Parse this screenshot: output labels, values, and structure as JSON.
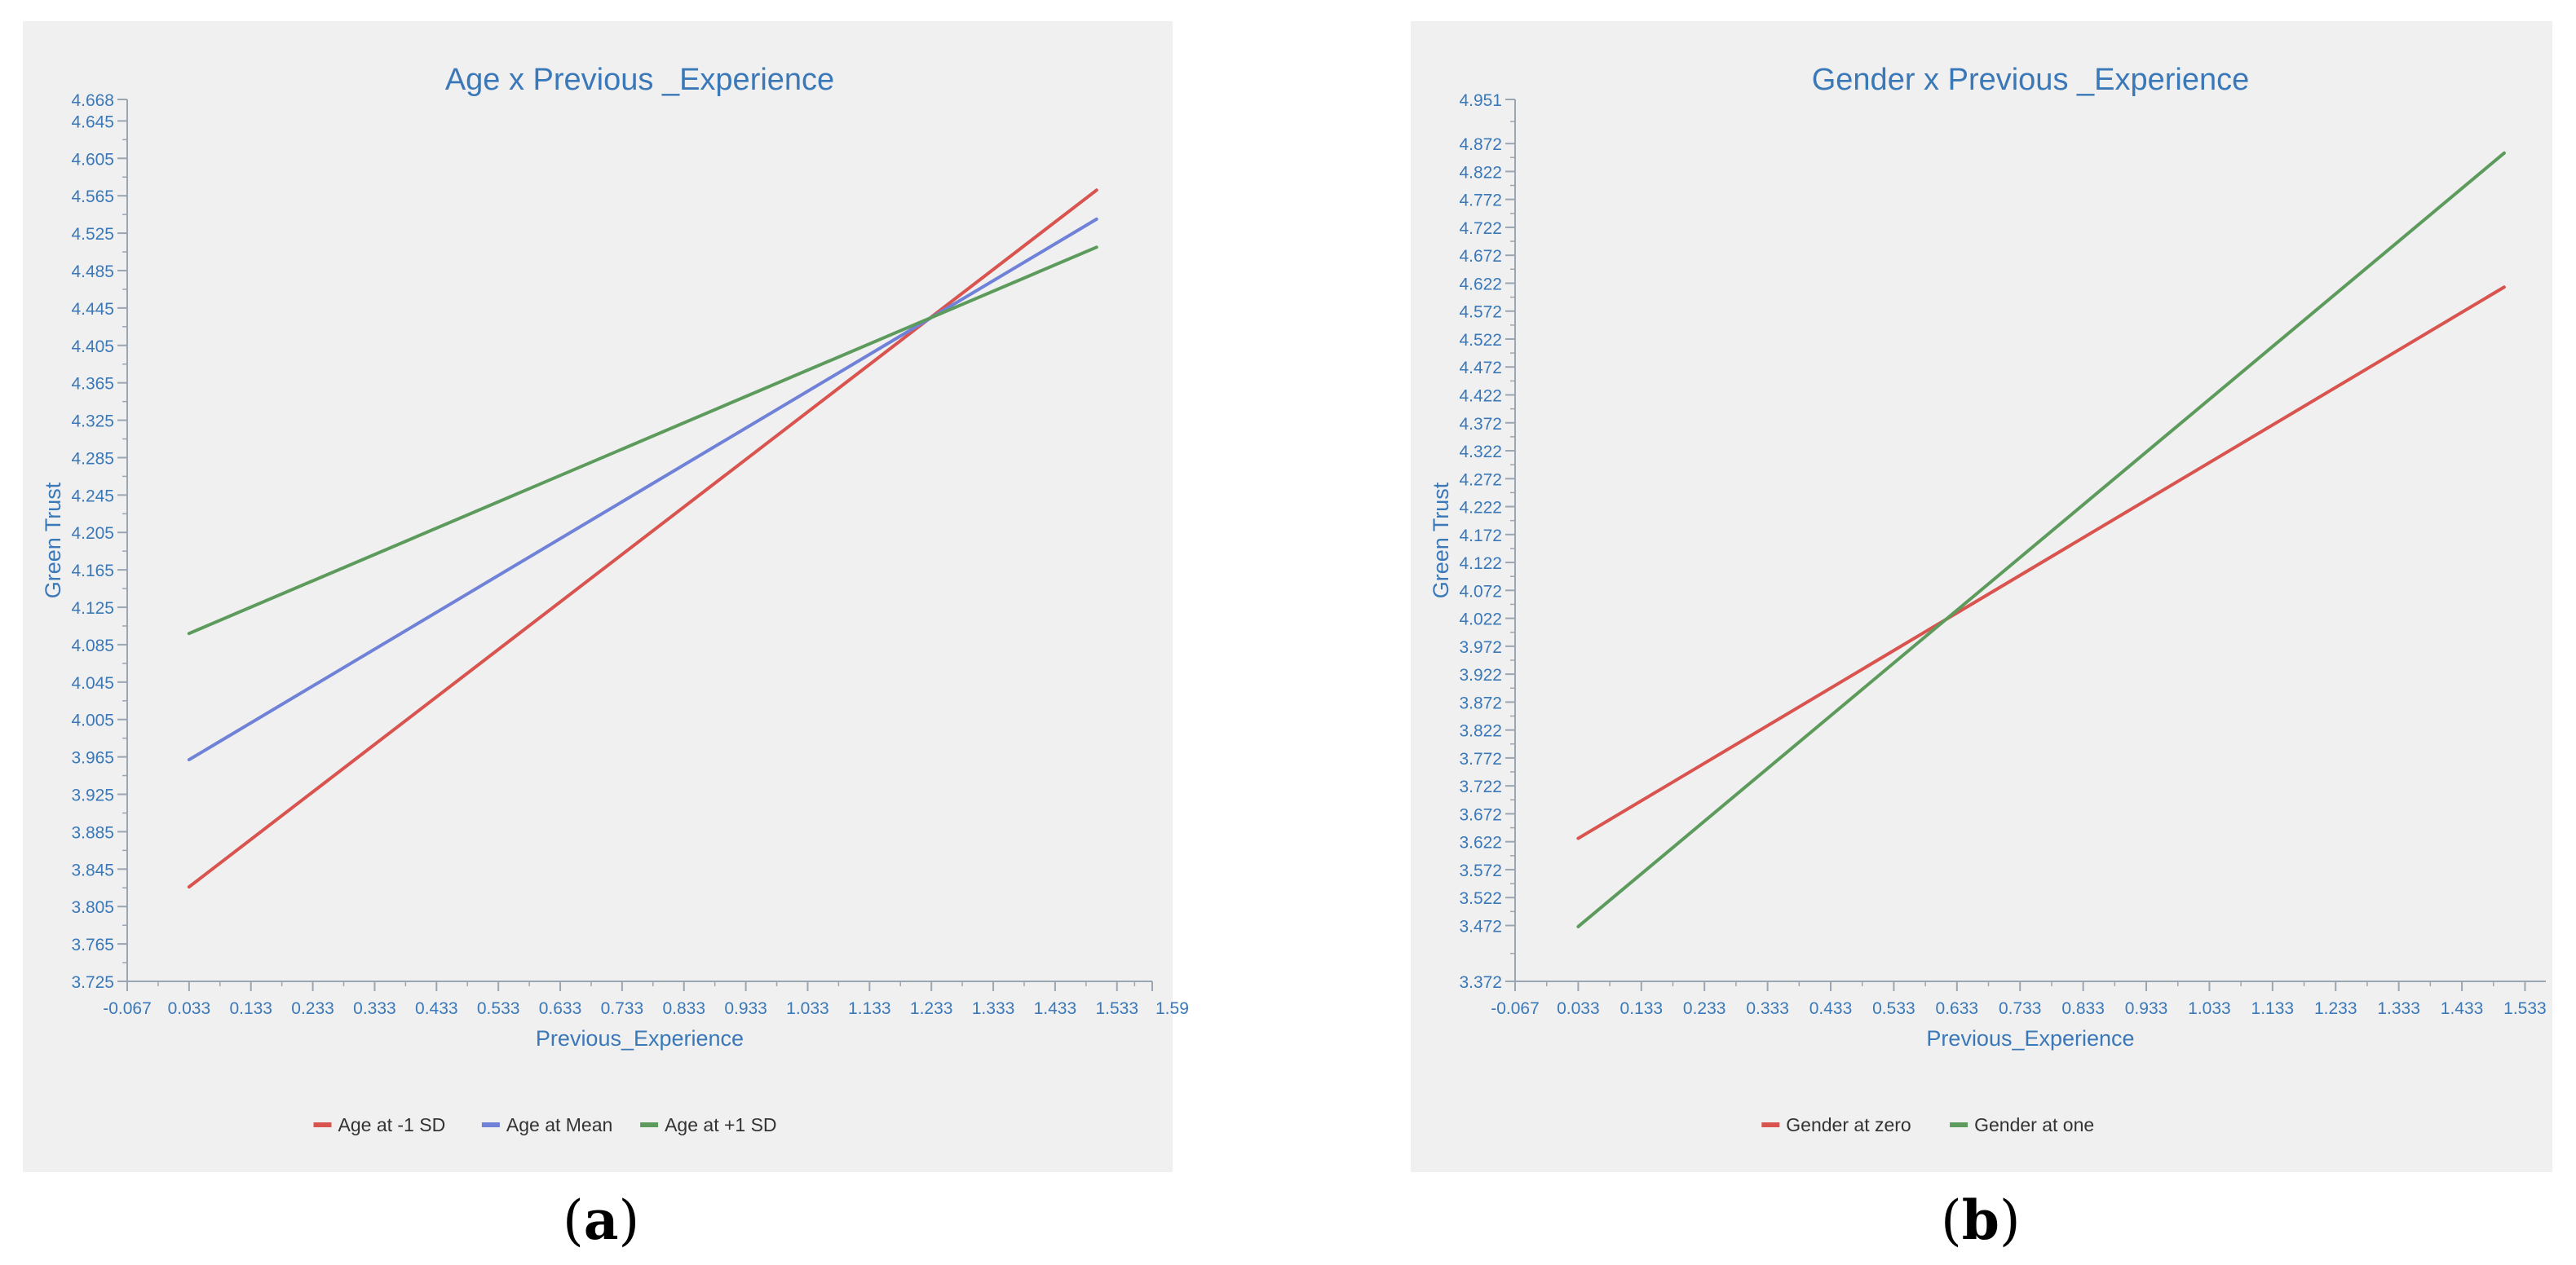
{
  "chart_data": [
    {
      "type": "line",
      "title": "Age x Previous _Experience",
      "xlabel": "Previous_Experience",
      "ylabel": "Green Trust",
      "xlim": [
        -0.067,
        1.59
      ],
      "ylim": [
        3.725,
        4.668
      ],
      "x_ticks": [
        -0.067,
        0.033,
        0.133,
        0.233,
        0.333,
        0.433,
        0.533,
        0.633,
        0.733,
        0.833,
        0.933,
        1.033,
        1.133,
        1.233,
        1.333,
        1.433,
        1.533,
        1.59
      ],
      "x_tick_labels": [
        "-0.067",
        "0.033",
        "0.133",
        "0.233",
        "0.333",
        "0.433",
        "0.533",
        "0.633",
        "0.733",
        "0.833",
        "0.933",
        "1.033",
        "1.133",
        "1.233",
        "1.333",
        "1.433",
        "1.533",
        "1.59"
      ],
      "y_ticks": [
        3.725,
        3.765,
        3.805,
        3.845,
        3.885,
        3.925,
        3.965,
        4.005,
        4.045,
        4.085,
        4.125,
        4.165,
        4.205,
        4.245,
        4.285,
        4.325,
        4.365,
        4.405,
        4.445,
        4.485,
        4.525,
        4.565,
        4.605,
        4.645,
        4.668
      ],
      "y_tick_labels": [
        "3.725",
        "3.765",
        "3.805",
        "3.845",
        "3.885",
        "3.925",
        "3.965",
        "4.005",
        "4.045",
        "4.085",
        "4.125",
        "4.165",
        "4.205",
        "4.245",
        "4.285",
        "4.325",
        "4.365",
        "4.405",
        "4.445",
        "4.485",
        "4.525",
        "4.565",
        "4.605",
        "4.645",
        "4.668"
      ],
      "series": [
        {
          "name": "Age at -1 SD",
          "color": "#d9534f",
          "x": [
            0.033,
            1.5
          ],
          "y": [
            3.826,
            4.571
          ]
        },
        {
          "name": "Age at Mean",
          "color": "#6f82d8",
          "x": [
            0.033,
            1.5
          ],
          "y": [
            3.962,
            4.54
          ]
        },
        {
          "name": "Age at +1 SD",
          "color": "#5c9b5c",
          "x": [
            0.033,
            1.5
          ],
          "y": [
            4.097,
            4.51
          ]
        }
      ],
      "legend_position": "bottom-center"
    },
    {
      "type": "line",
      "title": "Gender x Previous _Experience",
      "xlabel": "Previous_Experience",
      "ylabel": "Green Trust",
      "xlim": [
        -0.067,
        1.566
      ],
      "ylim": [
        3.372,
        4.951
      ],
      "x_ticks": [
        -0.067,
        0.033,
        0.133,
        0.233,
        0.333,
        0.433,
        0.533,
        0.633,
        0.733,
        0.833,
        0.933,
        1.033,
        1.133,
        1.233,
        1.333,
        1.433,
        1.533
      ],
      "x_tick_labels": [
        "-0.067",
        "0.033",
        "0.133",
        "0.233",
        "0.333",
        "0.433",
        "0.533",
        "0.633",
        "0.733",
        "0.833",
        "0.933",
        "1.033",
        "1.133",
        "1.233",
        "1.333",
        "1.433",
        "1.533"
      ],
      "y_ticks": [
        3.372,
        3.472,
        3.522,
        3.572,
        3.622,
        3.672,
        3.722,
        3.772,
        3.822,
        3.872,
        3.922,
        3.972,
        4.022,
        4.072,
        4.122,
        4.172,
        4.222,
        4.272,
        4.322,
        4.372,
        4.422,
        4.472,
        4.522,
        4.572,
        4.622,
        4.672,
        4.722,
        4.772,
        4.822,
        4.872,
        4.951
      ],
      "y_tick_labels": [
        "3.372",
        "3.472",
        "3.522",
        "3.572",
        "3.622",
        "3.672",
        "3.722",
        "3.772",
        "3.822",
        "3.872",
        "3.922",
        "3.972",
        "4.022",
        "4.072",
        "4.122",
        "4.172",
        "4.222",
        "4.272",
        "4.322",
        "4.372",
        "4.422",
        "4.472",
        "4.522",
        "4.572",
        "4.622",
        "4.672",
        "4.722",
        "4.772",
        "4.822",
        "4.872",
        "4.951"
      ],
      "series": [
        {
          "name": "Gender at zero",
          "color": "#d9534f",
          "x": [
            0.033,
            1.5
          ],
          "y": [
            3.628,
            4.615
          ]
        },
        {
          "name": "Gender at one",
          "color": "#5c9b5c",
          "x": [
            0.033,
            1.5
          ],
          "y": [
            3.47,
            4.855
          ]
        }
      ],
      "legend_position": "bottom-center"
    }
  ],
  "panel_labels": [
    {
      "open": "(",
      "letter": "a",
      "close": ")"
    },
    {
      "open": "(",
      "letter": "b",
      "close": ")"
    }
  ],
  "colors": {
    "axis_text": "#3a78b8",
    "panel_bg": "#f0f0f0",
    "tick_line": "#9aa6b2"
  }
}
